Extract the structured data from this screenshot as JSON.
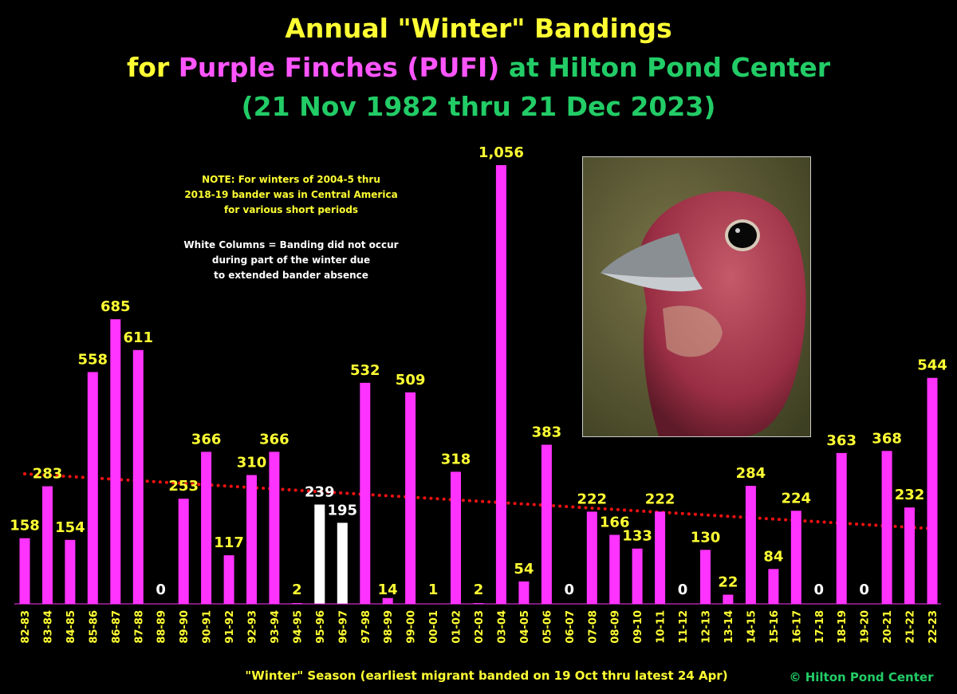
{
  "title": {
    "line1": "Annual \"Winter\" Bandings",
    "line2_prefix": "for ",
    "line2_species": "Purple Finches (PUFI)",
    "line2_suffix": " at Hilton Pond Center",
    "line3": "(21 Nov 1982 thru 21 Dec 2023)"
  },
  "note": {
    "yellow": [
      "NOTE: For winters of 2004-5 thru",
      "2018-19 bander was in Central America",
      "for various short periods"
    ],
    "white": [
      "White Columns = Banding did not occur",
      "during part of the winter due",
      "to extended bander absence"
    ]
  },
  "copyright": "© Hilton Pond Center",
  "colors": {
    "bar": "#ff33ff",
    "bar_absence": "#ffffff",
    "trend": "#ee1111",
    "label": "#ffff33",
    "species": "#ff55ff",
    "location": "#22cc66"
  },
  "chart_data": {
    "type": "bar",
    "xlabel": "\"Winter\" Season (earliest migrant banded on 19 Oct thru latest 24 Apr)",
    "ylabel": "",
    "ylim": [
      0,
      1056
    ],
    "grid": false,
    "categories": [
      "82-83",
      "83-84",
      "84-85",
      "85-86",
      "86-87",
      "87-88",
      "88-89",
      "89-90",
      "90-91",
      "91-92",
      "92-93",
      "93-94",
      "94-95",
      "95-96",
      "96-97",
      "97-98",
      "98-99",
      "99-00",
      "00-01",
      "01-02",
      "02-03",
      "03-04",
      "04-05",
      "05-06",
      "06-07",
      "07-08",
      "08-09",
      "09-10",
      "10-11",
      "11-12",
      "12-13",
      "13-14",
      "14-15",
      "15-16",
      "16-17",
      "17-18",
      "18-19",
      "19-20",
      "20-21",
      "21-22",
      "22-23"
    ],
    "values": [
      158,
      283,
      154,
      558,
      685,
      611,
      0,
      253,
      366,
      117,
      310,
      366,
      2,
      239,
      195,
      532,
      14,
      509,
      1,
      318,
      2,
      1056,
      54,
      383,
      0,
      222,
      166,
      133,
      222,
      0,
      130,
      22,
      284,
      84,
      224,
      0,
      363,
      0,
      368,
      232,
      544
    ],
    "value_labels": [
      "158",
      "283",
      "154",
      "558",
      "685",
      "611",
      "0",
      "253",
      "366",
      "117",
      "310",
      "366",
      "2",
      "239",
      "195",
      "532",
      "14",
      "509",
      "1",
      "318",
      "2",
      "1,056",
      "54",
      "383",
      "0",
      "222",
      "166",
      "133",
      "222",
      "0",
      "130",
      "22",
      "284",
      "84",
      "224",
      "0",
      "363",
      "0",
      "368",
      "232",
      "544"
    ],
    "absence_categories": [
      "95-96",
      "96-97"
    ],
    "trendline": {
      "style": "dotted",
      "start_value": 313,
      "end_value": 181
    }
  }
}
